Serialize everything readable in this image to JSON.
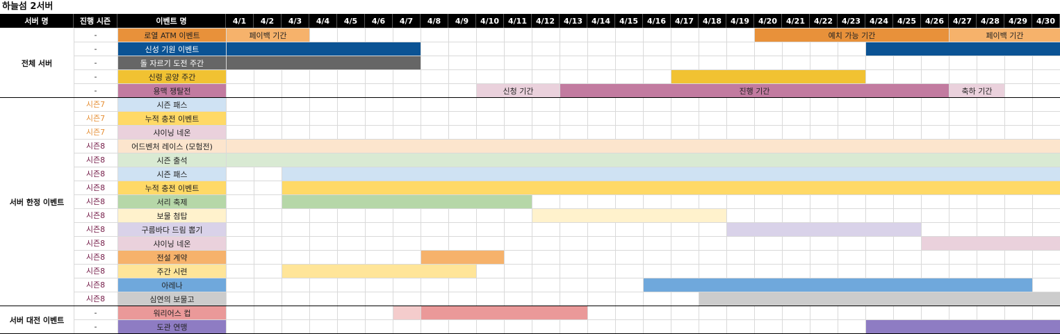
{
  "title": "하늘섬 2서버",
  "headers": {
    "server": "서버 명",
    "season": "진행 시즌",
    "event": "이벤트 명"
  },
  "dates": [
    "4/1",
    "4/2",
    "4/3",
    "4/4",
    "4/5",
    "4/6",
    "4/7",
    "4/8",
    "4/9",
    "4/10",
    "4/11",
    "4/12",
    "4/13",
    "4/14",
    "4/15",
    "4/16",
    "4/17",
    "4/18",
    "4/19",
    "4/20",
    "4/21",
    "4/22",
    "4/23",
    "4/24",
    "4/25",
    "4/26",
    "4/27",
    "4/28",
    "4/29",
    "4/30"
  ],
  "sections": [
    {
      "name": "전체 서버",
      "rows": 5
    },
    {
      "name": "서버 한정 이벤트",
      "rows": 15
    },
    {
      "name": "서버 대전 이벤트",
      "rows": 2
    }
  ],
  "rows": [
    {
      "season": "-",
      "event": "로열 ATM 이벤트",
      "color": "#e8913a",
      "bars": [
        {
          "start": 1,
          "end": 3,
          "color": "#f6b26b",
          "label": "페이백 기간"
        },
        {
          "start": 20,
          "end": 26,
          "color": "#e8913a",
          "label": "예치 가능 기간"
        },
        {
          "start": 27,
          "end": 30,
          "color": "#f6b26b",
          "label": "페이백 기간"
        }
      ]
    },
    {
      "season": "-",
      "event": "신성 기원 이벤트",
      "color": "#0b5394",
      "textColor": "#ffffff",
      "bars": [
        {
          "start": 1,
          "end": 7,
          "color": "#0b5394"
        },
        {
          "start": 24,
          "end": 30,
          "color": "#0b5394"
        }
      ]
    },
    {
      "season": "-",
      "event": "돌 자르기 도전 주간",
      "color": "#666666",
      "textColor": "#ffffff",
      "bars": [
        {
          "start": 1,
          "end": 7,
          "color": "#666666"
        }
      ]
    },
    {
      "season": "-",
      "event": "신령 공양 주간",
      "color": "#f1c232",
      "bars": [
        {
          "start": 17,
          "end": 23,
          "color": "#f1c232"
        }
      ]
    },
    {
      "season": "-",
      "event": "용맥 쟁탈전",
      "color": "#c27ba0",
      "bars": [
        {
          "start": 10,
          "end": 12,
          "color": "#ead1dc",
          "label": "신청 기간"
        },
        {
          "start": 13,
          "end": 26,
          "color": "#c27ba0",
          "label": "진행 기간"
        },
        {
          "start": 27,
          "end": 28,
          "color": "#ead1dc",
          "label": "축하 기간"
        }
      ]
    },
    {
      "season": "시즌7",
      "seasonColor": "#e69138",
      "event": "시즌 패스",
      "color": "#cfe2f3",
      "bars": []
    },
    {
      "season": "시즌7",
      "seasonColor": "#e69138",
      "event": "누적 충전 이벤트",
      "color": "#ffd966",
      "bars": []
    },
    {
      "season": "시즌7",
      "seasonColor": "#e69138",
      "event": "샤이닝 네온",
      "color": "#ead1dc",
      "bars": []
    },
    {
      "season": "시즌8",
      "seasonColor": "#741b47",
      "event": "어드벤처 레이스 (모험전)",
      "color": "#fce5cd",
      "bars": [
        {
          "start": 1,
          "end": 30,
          "color": "#fce5cd"
        }
      ]
    },
    {
      "season": "시즌8",
      "seasonColor": "#741b47",
      "event": "시즌 출석",
      "color": "#d9ead3",
      "bars": [
        {
          "start": 1,
          "end": 30,
          "color": "#d9ead3"
        }
      ]
    },
    {
      "season": "시즌8",
      "seasonColor": "#741b47",
      "event": "시즌 패스",
      "color": "#cfe2f3",
      "bars": [
        {
          "start": 3,
          "end": 30,
          "color": "#cfe2f3"
        }
      ]
    },
    {
      "season": "시즌8",
      "seasonColor": "#741b47",
      "event": "누적 충전 이벤트",
      "color": "#ffd966",
      "bars": [
        {
          "start": 3,
          "end": 30,
          "color": "#ffd966"
        }
      ]
    },
    {
      "season": "시즌8",
      "seasonColor": "#741b47",
      "event": "서리 축제",
      "color": "#b6d7a8",
      "bars": [
        {
          "start": 3,
          "end": 11,
          "color": "#b6d7a8"
        }
      ]
    },
    {
      "season": "시즌8",
      "seasonColor": "#741b47",
      "event": "보물 첨탑",
      "color": "#fff2cc",
      "bars": [
        {
          "start": 12,
          "end": 18,
          "color": "#fff2cc"
        }
      ]
    },
    {
      "season": "시즌8",
      "seasonColor": "#741b47",
      "event": "구름바다 드림 뽑기",
      "color": "#d9d2e9",
      "bars": [
        {
          "start": 19,
          "end": 25,
          "color": "#d9d2e9"
        }
      ]
    },
    {
      "season": "시즌8",
      "seasonColor": "#741b47",
      "event": "샤이닝 네온",
      "color": "#ead1dc",
      "bars": [
        {
          "start": 26,
          "end": 30,
          "color": "#ead1dc"
        }
      ]
    },
    {
      "season": "시즌8",
      "seasonColor": "#741b47",
      "event": "전설 계약",
      "color": "#f6b26b",
      "bars": [
        {
          "start": 8,
          "end": 10,
          "color": "#f6b26b"
        }
      ]
    },
    {
      "season": "시즌8",
      "seasonColor": "#741b47",
      "event": "주간 시련",
      "color": "#ffe599",
      "bars": [
        {
          "start": 3,
          "end": 9,
          "color": "#ffe599"
        }
      ]
    },
    {
      "season": "시즌8",
      "seasonColor": "#741b47",
      "event": "아레나",
      "color": "#6fa8dc",
      "bars": [
        {
          "start": 16,
          "end": 29,
          "color": "#6fa8dc"
        }
      ]
    },
    {
      "season": "시즌8",
      "seasonColor": "#741b47",
      "event": "심연의 보물고",
      "color": "#cccccc",
      "bars": [
        {
          "start": 18,
          "end": 30,
          "color": "#cccccc"
        }
      ]
    },
    {
      "season": "-",
      "event": "워리어스 컵",
      "color": "#ea9999",
      "bars": [
        {
          "start": 7,
          "end": 7,
          "color": "#f4cccc"
        },
        {
          "start": 8,
          "end": 13,
          "color": "#ea9999"
        }
      ]
    },
    {
      "season": "-",
      "event": "도관 연맹",
      "color": "#8e7cc3",
      "bars": [
        {
          "start": 24,
          "end": 30,
          "color": "#8e7cc3"
        }
      ]
    }
  ]
}
